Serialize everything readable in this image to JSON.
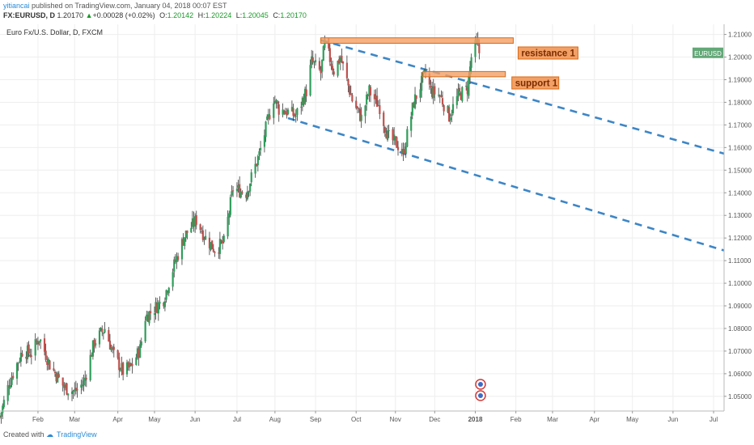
{
  "header": {
    "author": "yitiancai",
    "published": "published on TradingView.com, January 04, 2018 00:07 EST",
    "symbol": "FX:EURUSD, D",
    "last": "1.20170",
    "arrow": "▲",
    "change": "+0.00028 (+0.02%)",
    "open_label": "O:",
    "open": "1.20142",
    "high_label": "H:",
    "high": "1.20224",
    "low_label": "L:",
    "low": "1.20045",
    "close_label": "C:",
    "close": "1.20170"
  },
  "footer": {
    "created": "Created with",
    "brand": "TradingView"
  },
  "colors": {
    "up": "#2e9e5a",
    "down": "#c0504d",
    "wick": "#3a3a3a",
    "trendline": "#3d86c6",
    "zone_fill": "#f3a066",
    "zone_stroke": "#d86a16",
    "price_tag": "#63a878",
    "grid": "#eeeeee"
  },
  "chart_data": {
    "type": "candlestick",
    "title": "Euro Fx/U.S. Dollar, D, FXCM",
    "symbol_tag": "EURUSD",
    "last_price": 1.2017,
    "y_ticks": [
      "1.05000",
      "1.06000",
      "1.07000",
      "1.08000",
      "1.09000",
      "1.10000",
      "1.11000",
      "1.12000",
      "1.13000",
      "1.14000",
      "1.15000",
      "1.16000",
      "1.17000",
      "1.18000",
      "1.19000",
      "1.20000",
      "1.21000"
    ],
    "ylim": [
      1.0435,
      1.2145
    ],
    "x_ticks": [
      {
        "label": "Feb",
        "date": "2017-02-01"
      },
      {
        "label": "Mar",
        "date": "2017-03-01"
      },
      {
        "label": "Apr",
        "date": "2017-04-03"
      },
      {
        "label": "May",
        "date": "2017-05-01"
      },
      {
        "label": "Jun",
        "date": "2017-06-01"
      },
      {
        "label": "Jul",
        "date": "2017-07-03"
      },
      {
        "label": "Aug",
        "date": "2017-08-01"
      },
      {
        "label": "Sep",
        "date": "2017-09-01"
      },
      {
        "label": "Oct",
        "date": "2017-10-02"
      },
      {
        "label": "Nov",
        "date": "2017-11-01"
      },
      {
        "label": "Dec",
        "date": "2017-12-01"
      },
      {
        "label": "2018",
        "date": "2018-01-01"
      },
      {
        "label": "Feb",
        "date": "2018-02-01"
      },
      {
        "label": "Mar",
        "date": "2018-03-01"
      },
      {
        "label": "Apr",
        "date": "2018-04-02"
      },
      {
        "label": "May",
        "date": "2018-05-01"
      },
      {
        "label": "Jun",
        "date": "2018-06-01"
      },
      {
        "label": "Jul",
        "date": "2018-07-02"
      }
    ],
    "x_range": [
      "2017-01-03",
      "2018-07-10"
    ],
    "close_path": [
      [
        "2017-01-03",
        1.041
      ],
      [
        "2017-01-10",
        1.056
      ],
      [
        "2017-01-20",
        1.07
      ],
      [
        "2017-01-27",
        1.069
      ],
      [
        "2017-02-02",
        1.076
      ],
      [
        "2017-02-10",
        1.064
      ],
      [
        "2017-02-21",
        1.054
      ],
      [
        "2017-03-01",
        1.052
      ],
      [
        "2017-03-08",
        1.056
      ],
      [
        "2017-03-16",
        1.074
      ],
      [
        "2017-03-24",
        1.08
      ],
      [
        "2017-03-31",
        1.068
      ],
      [
        "2017-04-07",
        1.061
      ],
      [
        "2017-04-13",
        1.063
      ],
      [
        "2017-04-20",
        1.071
      ],
      [
        "2017-04-24",
        1.085
      ],
      [
        "2017-05-03",
        1.09
      ],
      [
        "2017-05-08",
        1.093
      ],
      [
        "2017-05-16",
        1.108
      ],
      [
        "2017-05-24",
        1.121
      ],
      [
        "2017-06-02",
        1.128
      ],
      [
        "2017-06-09",
        1.12
      ],
      [
        "2017-06-16",
        1.115
      ],
      [
        "2017-06-23",
        1.118
      ],
      [
        "2017-06-30",
        1.142
      ],
      [
        "2017-07-10",
        1.14
      ],
      [
        "2017-07-20",
        1.157
      ],
      [
        "2017-07-31",
        1.182
      ],
      [
        "2017-08-04",
        1.177
      ],
      [
        "2017-08-10",
        1.176
      ],
      [
        "2017-08-17",
        1.174
      ],
      [
        "2017-08-25",
        1.185
      ],
      [
        "2017-08-29",
        1.198
      ],
      [
        "2017-09-05",
        1.193
      ],
      [
        "2017-09-08",
        1.206
      ],
      [
        "2017-09-15",
        1.194
      ],
      [
        "2017-09-20",
        1.2
      ],
      [
        "2017-09-29",
        1.181
      ],
      [
        "2017-10-06",
        1.173
      ],
      [
        "2017-10-12",
        1.185
      ],
      [
        "2017-10-20",
        1.178
      ],
      [
        "2017-10-26",
        1.165
      ],
      [
        "2017-11-03",
        1.161
      ],
      [
        "2017-11-07",
        1.157
      ],
      [
        "2017-11-15",
        1.18
      ],
      [
        "2017-11-24",
        1.193
      ],
      [
        "2017-11-28",
        1.185
      ],
      [
        "2017-12-05",
        1.183
      ],
      [
        "2017-12-12",
        1.174
      ],
      [
        "2017-12-19",
        1.183
      ],
      [
        "2017-12-26",
        1.186
      ],
      [
        "2017-12-29",
        1.2
      ],
      [
        "2018-01-02",
        1.206
      ],
      [
        "2018-01-04",
        1.2017
      ]
    ],
    "annotations": {
      "resistance": {
        "label": "resistance 1",
        "from": "2017-09-05",
        "to": "2018-01-30",
        "y_top": 1.2078,
        "y_bottom": 1.2068
      },
      "support": {
        "label": "support 1",
        "from": "2017-11-22",
        "to": "2018-01-24",
        "y_top": 1.1929,
        "y_bottom": 1.192
      },
      "channel_upper": {
        "from": [
          "2017-09-05",
          1.2075
        ],
        "to": [
          "2018-07-10",
          1.1573
        ]
      },
      "channel_lower": {
        "from": [
          "2017-08-11",
          1.173
        ],
        "to": [
          "2018-07-10",
          1.1145
        ]
      }
    }
  }
}
